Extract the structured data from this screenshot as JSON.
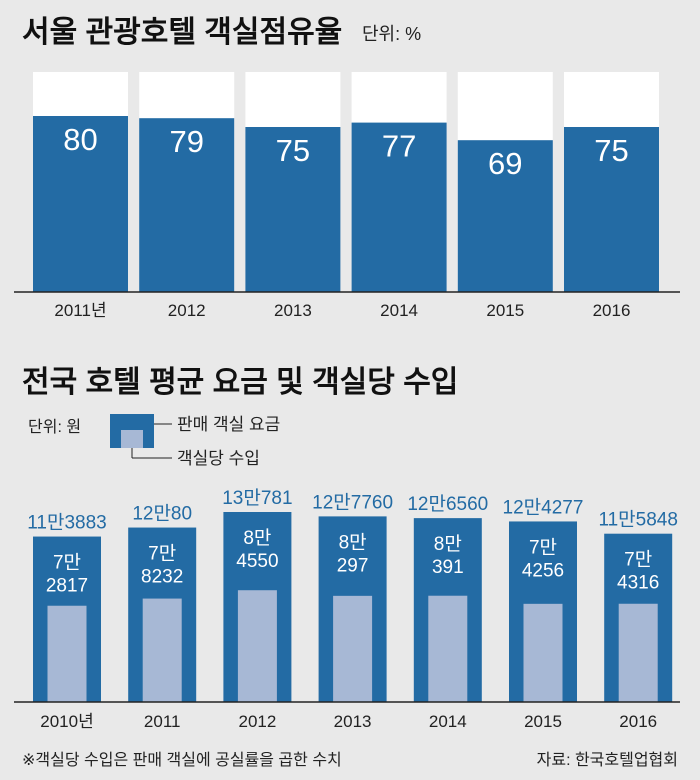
{
  "colors": {
    "background": "#e9e9e9",
    "bar_dark": "#236ba4",
    "bar_light": "#a7b8d5",
    "bar_capacity": "#ffffff",
    "total_label": "#236ba4",
    "axis": "#222222"
  },
  "unit1": "단위: %",
  "unit2": "단위: 원",
  "legend": {
    "item1": "판매 객실 요금",
    "item2": "객실당 수입"
  },
  "footnote": "※객실당 수입은 판매 객실에 공실률을 곱한 수치",
  "source": "자료: 한국호텔업협회",
  "chart_data": [
    {
      "type": "bar",
      "title": "서울 관광호텔 객실점유율",
      "unit": "단위: %",
      "categories": [
        "2011년",
        "2012",
        "2013",
        "2014",
        "2015",
        "2016"
      ],
      "values": [
        80,
        79,
        75,
        77,
        69,
        75
      ],
      "value_labels": [
        "80",
        "79",
        "75",
        "77",
        "69",
        "75"
      ],
      "ylim": [
        0,
        100
      ],
      "grid": false
    },
    {
      "type": "bar",
      "title": "전국 호텔 평균 요금 및 객실당 수입",
      "unit": "단위: 원",
      "categories": [
        "2010년",
        "2011",
        "2012",
        "2013",
        "2014",
        "2015",
        "2016"
      ],
      "series": [
        {
          "name": "판매 객실 요금",
          "values": [
            113883,
            120080,
            130781,
            127760,
            126560,
            124277,
            115848
          ],
          "labels": [
            "11만3883",
            "12만80",
            "13만781",
            "12만7760",
            "12만6560",
            "12만4277",
            "11만5848"
          ]
        },
        {
          "name": "객실당 수입",
          "values": [
            72817,
            78232,
            84550,
            80297,
            80391,
            74256,
            74316
          ],
          "labels_top": [
            "7만",
            "7만",
            "8만",
            "8만",
            "8만",
            "7만",
            "7만"
          ],
          "labels_bottom": [
            "2817",
            "8232",
            "4550",
            "297",
            "391",
            "4256",
            "4316"
          ]
        }
      ],
      "grid": false,
      "legend_position": "top-left"
    }
  ]
}
